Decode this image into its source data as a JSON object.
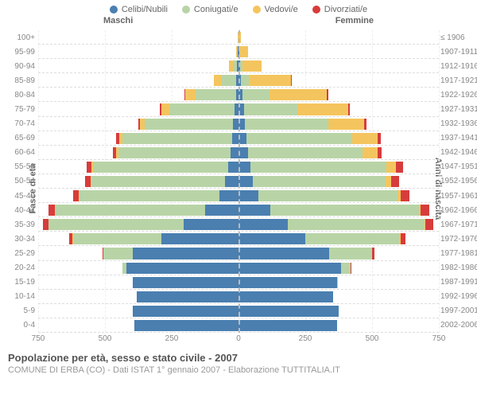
{
  "type": "population-pyramid",
  "legend": [
    {
      "label": "Celibi/Nubili",
      "color": "#4a7fb0"
    },
    {
      "label": "Coniugati/e",
      "color": "#b8d4a6"
    },
    {
      "label": "Vedovi/e",
      "color": "#f4c55e"
    },
    {
      "label": "Divorziati/e",
      "color": "#d73c3c"
    }
  ],
  "headers": {
    "left": "Maschi",
    "right": "Femmine"
  },
  "ylabels": {
    "left": "Fasce di età",
    "right": "Anni di nascita"
  },
  "axis": {
    "max": 750,
    "ticks": [
      750,
      500,
      250,
      0,
      250,
      500,
      750
    ],
    "grid_color": "#eeeeee"
  },
  "colors": {
    "background": "#ffffff",
    "divider": "#dddddd",
    "center": "#bbbbbb"
  },
  "fontsize": {
    "legend": 11,
    "header": 11,
    "tick": 10,
    "title": 13,
    "subtitle": 11
  },
  "title": "Popolazione per età, sesso e stato civile - 2007",
  "subtitle": "COMUNE DI ERBA (CO) - Dati ISTAT 1° gennaio 2007 - Elaborazione TUTTITALIA.IT",
  "rows": [
    {
      "age": "100+",
      "birth": "≤ 1906",
      "m": [
        0,
        0,
        3,
        0
      ],
      "f": [
        0,
        0,
        8,
        0
      ]
    },
    {
      "age": "95-99",
      "birth": "1907-1911",
      "m": [
        2,
        3,
        5,
        0
      ],
      "f": [
        2,
        3,
        30,
        0
      ]
    },
    {
      "age": "90-94",
      "birth": "1912-1916",
      "m": [
        5,
        15,
        15,
        0
      ],
      "f": [
        5,
        10,
        70,
        0
      ]
    },
    {
      "age": "85-89",
      "birth": "1917-1921",
      "m": [
        8,
        55,
        30,
        0
      ],
      "f": [
        10,
        30,
        155,
        2
      ]
    },
    {
      "age": "80-84",
      "birth": "1922-1926",
      "m": [
        10,
        150,
        40,
        3
      ],
      "f": [
        15,
        100,
        215,
        5
      ]
    },
    {
      "age": "75-79",
      "birth": "1927-1931",
      "m": [
        15,
        245,
        30,
        5
      ],
      "f": [
        20,
        200,
        190,
        8
      ]
    },
    {
      "age": "70-74",
      "birth": "1932-1936",
      "m": [
        20,
        330,
        18,
        8
      ],
      "f": [
        25,
        310,
        135,
        10
      ]
    },
    {
      "age": "65-69",
      "birth": "1937-1941",
      "m": [
        25,
        410,
        12,
        10
      ],
      "f": [
        30,
        395,
        95,
        12
      ]
    },
    {
      "age": "60-64",
      "birth": "1942-1946",
      "m": [
        30,
        420,
        8,
        12
      ],
      "f": [
        35,
        430,
        55,
        15
      ]
    },
    {
      "age": "55-59",
      "birth": "1947-1951",
      "m": [
        40,
        505,
        6,
        18
      ],
      "f": [
        45,
        510,
        35,
        25
      ]
    },
    {
      "age": "50-54",
      "birth": "1952-1956",
      "m": [
        50,
        500,
        4,
        20
      ],
      "f": [
        55,
        495,
        22,
        30
      ]
    },
    {
      "age": "45-49",
      "birth": "1957-1961",
      "m": [
        70,
        525,
        3,
        22
      ],
      "f": [
        75,
        520,
        12,
        32
      ]
    },
    {
      "age": "40-44",
      "birth": "1962-1966",
      "m": [
        125,
        560,
        2,
        25
      ],
      "f": [
        120,
        555,
        8,
        30
      ]
    },
    {
      "age": "35-39",
      "birth": "1967-1971",
      "m": [
        205,
        505,
        1,
        22
      ],
      "f": [
        185,
        510,
        5,
        28
      ]
    },
    {
      "age": "30-34",
      "birth": "1972-1976",
      "m": [
        290,
        330,
        1,
        12
      ],
      "f": [
        250,
        355,
        3,
        18
      ]
    },
    {
      "age": "25-29",
      "birth": "1977-1981",
      "m": [
        395,
        110,
        0,
        5
      ],
      "f": [
        340,
        160,
        1,
        8
      ]
    },
    {
      "age": "20-24",
      "birth": "1982-1986",
      "m": [
        420,
        15,
        0,
        1
      ],
      "f": [
        385,
        35,
        0,
        2
      ]
    },
    {
      "age": "15-19",
      "birth": "1987-1991",
      "m": [
        395,
        0,
        0,
        0
      ],
      "f": [
        370,
        2,
        0,
        0
      ]
    },
    {
      "age": "10-14",
      "birth": "1992-1996",
      "m": [
        380,
        0,
        0,
        0
      ],
      "f": [
        355,
        0,
        0,
        0
      ]
    },
    {
      "age": "5-9",
      "birth": "1997-2001",
      "m": [
        395,
        0,
        0,
        0
      ],
      "f": [
        375,
        0,
        0,
        0
      ]
    },
    {
      "age": "0-4",
      "birth": "2002-2006",
      "m": [
        390,
        0,
        0,
        0
      ],
      "f": [
        370,
        0,
        0,
        0
      ]
    }
  ]
}
